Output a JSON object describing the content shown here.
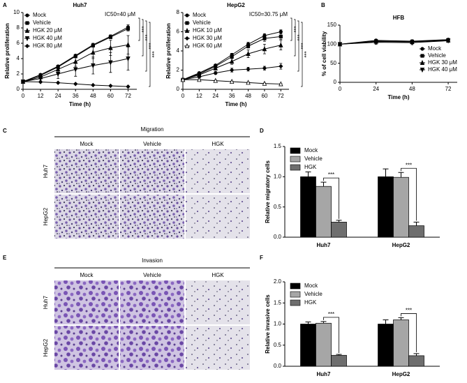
{
  "panel_labels": [
    "A",
    "B",
    "C",
    "D",
    "E",
    "F"
  ],
  "chart_data": [
    {
      "type": "line",
      "title": "Huh7",
      "annotation": "IC50=40 μM",
      "x_label": "Time (h)",
      "y_label": "Relative  proliferation",
      "x": [
        0,
        12,
        24,
        36,
        48,
        60,
        72
      ],
      "xlim": [
        0,
        78
      ],
      "xticks": [
        0,
        12,
        24,
        36,
        48,
        60,
        72
      ],
      "ylim": [
        0,
        10
      ],
      "yticks": [
        0,
        2,
        4,
        6,
        8,
        10
      ],
      "significance": [
        "***",
        "***",
        "***",
        "***"
      ],
      "series": [
        {
          "name": "Mock",
          "color": "#000000",
          "marker": "circle",
          "values": [
            1,
            1.9,
            3.0,
            4.4,
            5.8,
            6.9,
            8.1
          ],
          "errors": [
            0.05,
            0.1,
            0.15,
            0.15,
            0.2,
            0.2,
            0.3
          ]
        },
        {
          "name": "Vehicle",
          "color": "#000000",
          "marker": "square",
          "values": [
            1,
            1.8,
            2.9,
            4.3,
            5.7,
            6.8,
            7.9
          ],
          "errors": [
            0.05,
            0.1,
            0.15,
            0.15,
            0.2,
            0.2,
            0.3
          ]
        },
        {
          "name": "HGK  20 μM",
          "color": "#000000",
          "marker": "triangle",
          "values": [
            1,
            1.6,
            2.6,
            3.6,
            4.8,
            5.4,
            5.8
          ],
          "errors": [
            0.05,
            0.2,
            0.4,
            0.6,
            0.8,
            1.0,
            1.2
          ]
        },
        {
          "name": "HGK  40 μM",
          "color": "#000000",
          "marker": "triangle-down",
          "values": [
            1,
            1.4,
            2.0,
            2.6,
            3.1,
            3.5,
            4.0
          ],
          "errors": [
            0.05,
            0.3,
            0.6,
            0.9,
            1.1,
            1.3,
            1.5
          ]
        },
        {
          "name": "HGK  80 μM",
          "color": "#000000",
          "marker": "diamond",
          "values": [
            1,
            0.95,
            0.85,
            0.7,
            0.55,
            0.45,
            0.35
          ],
          "errors": [
            0.05,
            0.05,
            0.05,
            0.05,
            0.05,
            0.05,
            0.05
          ]
        }
      ]
    },
    {
      "type": "line",
      "title": "HepG2",
      "annotation": "IC50=30.75 μM",
      "x_label": "Time (h)",
      "y_label": "Relative  proliferation",
      "x": [
        0,
        12,
        24,
        36,
        48,
        60,
        72
      ],
      "xlim": [
        0,
        78
      ],
      "xticks": [
        0,
        12,
        24,
        36,
        48,
        60,
        72
      ],
      "ylim": [
        0,
        8
      ],
      "yticks": [
        0,
        2,
        4,
        6,
        8
      ],
      "significance": [
        "***",
        "***",
        "***",
        "***"
      ],
      "series": [
        {
          "name": "Mock",
          "color": "#000000",
          "marker": "circle",
          "values": [
            1,
            1.7,
            2.5,
            3.6,
            4.7,
            5.6,
            6.0
          ],
          "errors": [
            0.05,
            0.1,
            0.1,
            0.15,
            0.2,
            0.2,
            0.2
          ]
        },
        {
          "name": "Vehicle",
          "color": "#000000",
          "marker": "square",
          "values": [
            1,
            1.6,
            2.4,
            3.4,
            4.5,
            5.3,
            5.5
          ],
          "errors": [
            0.05,
            0.1,
            0.1,
            0.15,
            0.2,
            0.3,
            0.3
          ]
        },
        {
          "name": "HGK  10 μM",
          "color": "#000000",
          "marker": "triangle",
          "values": [
            1,
            1.5,
            2.2,
            2.9,
            3.7,
            4.2,
            4.6
          ],
          "errors": [
            0.05,
            0.1,
            0.2,
            0.3,
            0.4,
            0.5,
            0.5
          ]
        },
        {
          "name": "HGK  30 μM",
          "color": "#000000",
          "marker": "diamond",
          "values": [
            1,
            1.3,
            1.7,
            2.0,
            2.1,
            2.2,
            2.4
          ],
          "errors": [
            0.05,
            0.1,
            0.15,
            0.2,
            0.2,
            0.2,
            0.3
          ]
        },
        {
          "name": "HGK  60 μM",
          "color": "#000000",
          "marker": "triangle-open",
          "values": [
            1,
            1.0,
            0.9,
            0.8,
            0.7,
            0.6,
            0.55
          ],
          "errors": [
            0.05,
            0.1,
            0.05,
            0.05,
            0.05,
            0.05,
            0.05
          ]
        }
      ]
    },
    {
      "type": "line",
      "title": "HFB",
      "x_label": "Time (h)",
      "y_label": "% of cell viability",
      "legend": "lower right",
      "x": [
        0,
        24,
        48,
        72
      ],
      "xlim": [
        0,
        78
      ],
      "xticks": [
        0,
        24,
        48,
        72
      ],
      "ylim": [
        0,
        150
      ],
      "yticks": [
        0,
        50,
        100,
        150
      ],
      "series": [
        {
          "name": "Mock",
          "color": "#000000",
          "marker": "circle",
          "values": [
            100,
            110,
            108,
            112
          ],
          "errors": [
            2,
            3,
            3,
            3
          ]
        },
        {
          "name": "Vehicle",
          "color": "#000000",
          "marker": "square",
          "values": [
            100,
            108,
            107,
            111
          ],
          "errors": [
            2,
            4,
            4,
            3
          ]
        },
        {
          "name": "HGK 30 μM",
          "color": "#000000",
          "marker": "triangle",
          "values": [
            100,
            107,
            106,
            110
          ],
          "errors": [
            2,
            5,
            4,
            4
          ]
        },
        {
          "name": "HGK 40 μM",
          "color": "#000000",
          "marker": "triangle-down",
          "values": [
            100,
            105,
            104,
            109
          ],
          "errors": [
            2,
            5,
            5,
            4
          ]
        }
      ]
    },
    {
      "type": "bar",
      "y_label": "Relative  migratory cells",
      "categories": [
        "Huh7",
        "HepG2"
      ],
      "ylim": [
        0,
        1.5
      ],
      "yticks": [
        {
          "value": 0,
          "label": "0.0"
        },
        0.5,
        {
          "value": 1,
          "label": "1.0"
        },
        1.5
      ],
      "significance": [
        "***",
        "***"
      ],
      "series": [
        {
          "name": "Mock",
          "color": "#000000",
          "values": [
            1.0,
            1.0
          ],
          "errors": [
            0.08,
            0.13
          ]
        },
        {
          "name": "Vehicle",
          "color": "#a6a6a6",
          "values": [
            0.84,
            0.99
          ],
          "errors": [
            0.07,
            0.08
          ]
        },
        {
          "name": "HGK",
          "color": "#6e6e6e",
          "values": [
            0.25,
            0.19
          ],
          "errors": [
            0.03,
            0.06
          ]
        }
      ]
    },
    {
      "type": "bar",
      "y_label": "Relative  invasive cells",
      "categories": [
        "Huh7",
        "HepG2"
      ],
      "ylim": [
        0,
        2
      ],
      "yticks": [
        {
          "value": 0,
          "label": "0.0"
        },
        0.5,
        {
          "value": 1,
          "label": "1.0"
        },
        1.5,
        {
          "value": 2,
          "label": "2.0"
        }
      ],
      "significance": [
        "***",
        "***"
      ],
      "series": [
        {
          "name": "Mock",
          "color": "#000000",
          "values": [
            1.0,
            1.0
          ],
          "errors": [
            0.05,
            0.1
          ]
        },
        {
          "name": "Vehicle",
          "color": "#a6a6a6",
          "values": [
            1.02,
            1.1
          ],
          "errors": [
            0.04,
            0.05
          ]
        },
        {
          "name": "HGK",
          "color": "#6e6e6e",
          "values": [
            0.26,
            0.25
          ],
          "errors": [
            0.02,
            0.05
          ]
        }
      ]
    }
  ],
  "image_panels": [
    {
      "title": "Migration",
      "columns": [
        "Mock",
        "Vehicle",
        "HGK"
      ],
      "rows": [
        "Huh7",
        "HepG2"
      ]
    },
    {
      "title": "Invasion",
      "columns": [
        "Mock",
        "Vehicle",
        "HGK"
      ],
      "rows": [
        "Huh7",
        "HepG2"
      ]
    }
  ]
}
